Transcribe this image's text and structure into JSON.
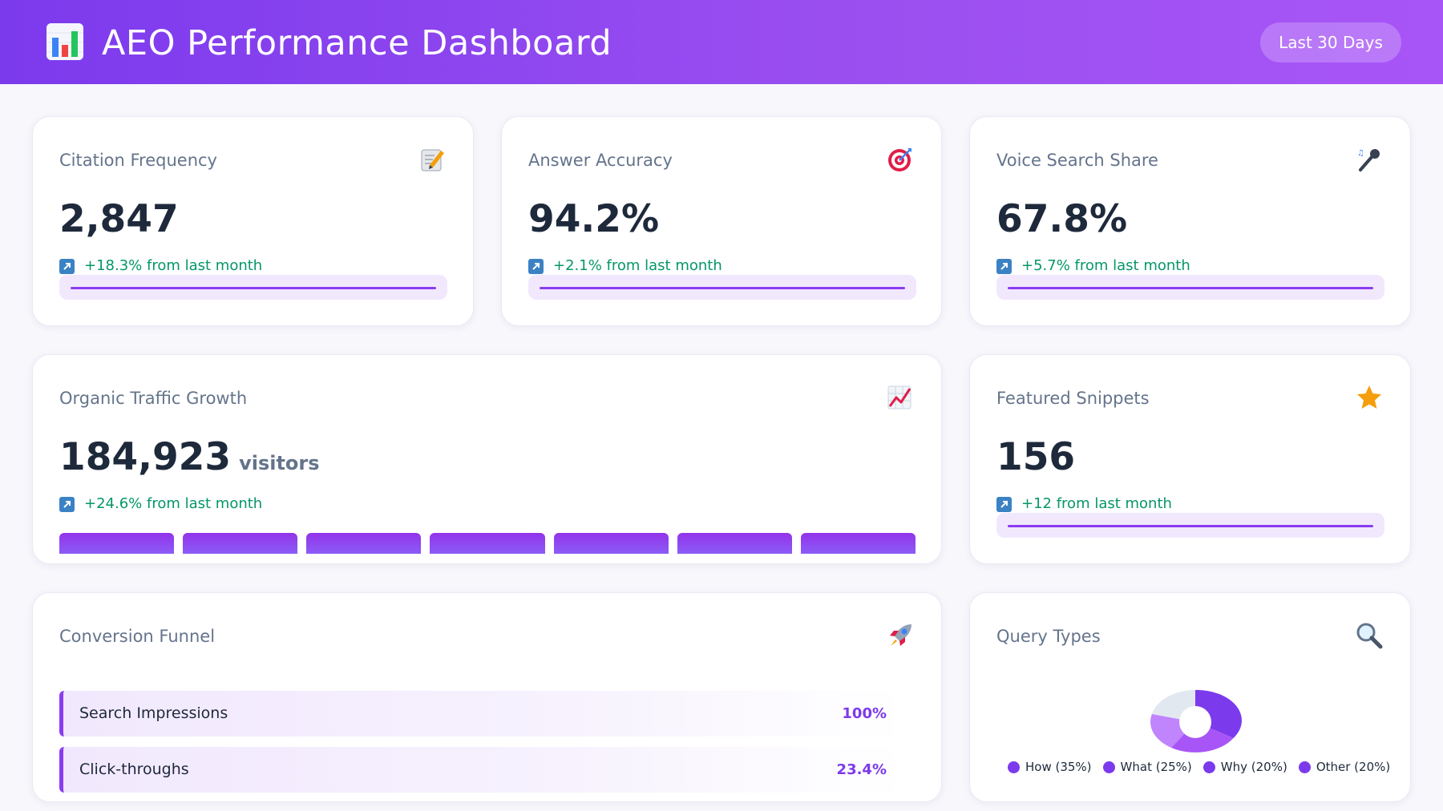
{
  "header": {
    "title": "AEO Performance Dashboard",
    "icon": "bar-chart-icon",
    "range_label": "Last 30 Days"
  },
  "colors": {
    "accent": "#7c3aed",
    "positive": "#059669",
    "header_gradient_start": "#7c3aed",
    "header_gradient_end": "#a855f7"
  },
  "metrics": {
    "citation": {
      "title": "Citation Frequency",
      "icon": "memo-icon",
      "value": "2,847",
      "change": "+18.3% from last month",
      "progress": 1.0
    },
    "accuracy": {
      "title": "Answer Accuracy",
      "icon": "target-icon",
      "value": "94.2%",
      "change": "+2.1% from last month",
      "progress": 1.0
    },
    "voice": {
      "title": "Voice Search Share",
      "icon": "microphone-icon",
      "value": "67.8%",
      "change": "+5.7% from last month",
      "progress": 1.0
    },
    "traffic": {
      "title": "Organic Traffic Growth",
      "icon": "trending-up-icon",
      "value": "184,923",
      "unit": "visitors",
      "change": "+24.6% from last month",
      "bar_count": 7
    },
    "snippets": {
      "title": "Featured Snippets",
      "icon": "star-icon",
      "value": "156",
      "change": "+12 from last month",
      "progress": 1.0
    }
  },
  "funnel": {
    "title": "Conversion Funnel",
    "icon": "rocket-icon",
    "rows": [
      {
        "label": "Search Impressions",
        "pct": "100%"
      },
      {
        "label": "Click-throughs",
        "pct": "23.4%"
      }
    ]
  },
  "query_types": {
    "title": "Query Types",
    "icon": "magnifier-icon",
    "legend": [
      {
        "label": "How (35%)",
        "color": "#7c3aed"
      },
      {
        "label": "What (25%)",
        "color": "#7c3aed"
      },
      {
        "label": "Why (20%)",
        "color": "#7c3aed"
      },
      {
        "label": "Other (20%)",
        "color": "#7c3aed"
      }
    ]
  }
}
